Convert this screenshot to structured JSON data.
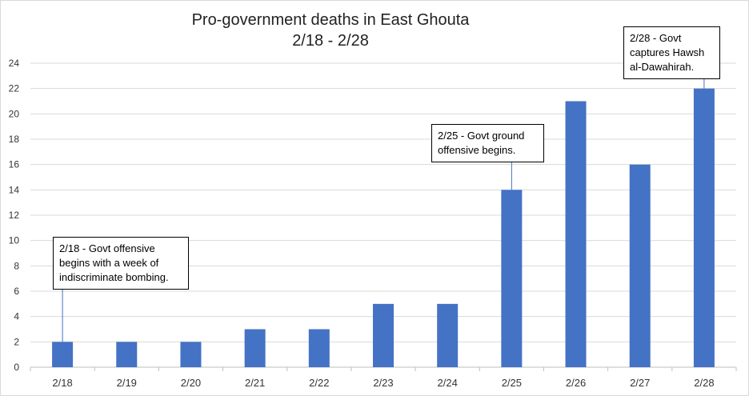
{
  "chart_data": {
    "type": "bar",
    "title": "Pro-government  deaths  in East Ghouta",
    "subtitle": "2/18 - 2/28",
    "categories": [
      "2/18",
      "2/19",
      "2/20",
      "2/21",
      "2/22",
      "2/23",
      "2/24",
      "2/25",
      "2/26",
      "2/27",
      "2/28"
    ],
    "values": [
      2,
      2,
      2,
      3,
      3,
      5,
      5,
      14,
      21,
      16,
      22
    ],
    "ylim": [
      0,
      24
    ],
    "yticks": [
      "0",
      "2",
      "4",
      "6",
      "8",
      "10",
      "12",
      "14",
      "16",
      "18",
      "20",
      "22",
      "24"
    ],
    "xlabel": "",
    "ylabel": "",
    "grid": true,
    "legend": "none",
    "bar_color": "#4472c4",
    "annotations": [
      {
        "category": "2/18",
        "lines": [
          "2/18 - Govt offensive",
          "begins with a week of",
          "indiscriminate bombing."
        ]
      },
      {
        "category": "2/25",
        "lines": [
          "2/25 - Govt ground",
          "offensive begins."
        ]
      },
      {
        "category": "2/28",
        "lines": [
          "2/28 - Govt",
          "captures Hawsh",
          "al-Dawahirah."
        ]
      }
    ]
  }
}
